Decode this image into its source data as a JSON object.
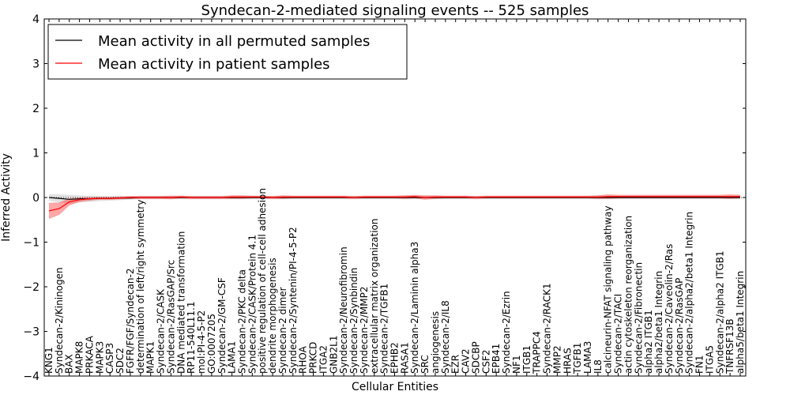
{
  "chart_data": {
    "type": "line",
    "title": "Syndecan-2-mediated signaling events -- 525 samples",
    "xlabel": "Cellular Entities",
    "ylabel": "Inferred Activity",
    "ylim": [
      -4,
      4
    ],
    "yticks": [
      "4",
      "3",
      "2",
      "1",
      "0",
      "−1",
      "−2",
      "−3",
      "−4"
    ],
    "yticks_values": [
      4,
      3,
      2,
      1,
      0,
      -1,
      -2,
      -3,
      -4
    ],
    "legend_position": "top-left",
    "categories": [
      "KNG1",
      "Syndecan-2/Kininogen",
      "BAX",
      "MAPK8",
      "PRKACA",
      "MAPK3",
      "CASP3",
      "SDC2",
      "FGFR/FGF/Syndecan-2",
      "determination of left/right symmetry",
      "MAPK1",
      "Syndecan-2/CASK",
      "Syndecan-2/RasGAP/Src",
      "DNA mediated transformation",
      "RP11-540L11.1",
      "mol:PI-4-5-P2",
      "GO:0007205",
      "Syndecan-2/GM-CSF",
      "LAMA1",
      "Syndecan-2/PKC delta",
      "Syndecan-2/CASK/Protein 4.1",
      "positive regulation of cell-cell adhesion",
      "dendrite morphogenesis",
      "Syndecan-2 dimer",
      "Syndecan-2/Syntenin/PI-4-5-P2",
      "RHOA",
      "PRKCD",
      "ITGA2",
      "GNB2L1",
      "Syndecan-2/Neurofibromin",
      "Syndecan-2/Synbindin",
      "Syndecan-2/MMP2",
      "extracellular matrix organization",
      "Syndecan-2/TGFB1",
      "EPHB2",
      "RASA1",
      "Syndecan-2/Laminin alpha3",
      "SRC",
      "angiogenesis",
      "Syndecan-2/IL8",
      "EZR",
      "CAV2",
      "SDCBP",
      "CSF2",
      "EPB41",
      "Syndecan-2/Ezrin",
      "NF1",
      "ITGB1",
      "TRAPPC4",
      "Syndecan-2/RACK1",
      "MMP2",
      "HRAS",
      "TGFB1",
      "LAMA3",
      "IL8",
      "calcineurin-NFAT signaling pathway",
      "Syndecan-2/TACI",
      "actin cytoskeleton reorganization",
      "Syndecan-2/Fibronectin",
      "alpha2 ITGB1",
      "alpha2/beta1 Integrin",
      "Syndecan-2/Caveolin-2/Ras",
      "Syndecan-2/RasGAP",
      "Syndecan-2/alpha2/beta1 Integrin",
      "FN1",
      "ITGA5",
      "Syndecan-2/alpha2 ITGB1",
      "TNFRSF13B",
      "alpha5/beta1 Integrin"
    ],
    "series": [
      {
        "name": "Mean activity in all permuted samples",
        "color": "#000000",
        "values": [
          0.0,
          -0.02,
          -0.04,
          -0.03,
          -0.03,
          -0.02,
          -0.02,
          -0.01,
          -0.01,
          0.0,
          0.0,
          0.0,
          0.0,
          0.0,
          0.0,
          0.0,
          0.0,
          0.0,
          0.0,
          0.0,
          0.0,
          0.0,
          0.0,
          0.0,
          0.0,
          0.0,
          0.0,
          0.0,
          0.0,
          0.0,
          0.0,
          0.0,
          0.0,
          0.0,
          0.0,
          0.0,
          0.0,
          0.0,
          0.0,
          0.0,
          0.0,
          0.0,
          0.0,
          0.0,
          0.0,
          0.0,
          0.0,
          0.0,
          0.0,
          0.0,
          0.0,
          0.0,
          0.0,
          0.0,
          0.0,
          0.0,
          0.0,
          0.0,
          0.0,
          0.0,
          0.0,
          0.0,
          0.0,
          0.0,
          0.0,
          0.0,
          0.0,
          0.0,
          0.0
        ],
        "band_halfwidth": [
          0.07,
          0.09,
          0.1,
          0.08,
          0.07,
          0.06,
          0.05,
          0.05,
          0.04,
          0.04,
          0.04,
          0.04,
          0.04,
          0.04,
          0.04,
          0.04,
          0.04,
          0.04,
          0.04,
          0.04,
          0.04,
          0.04,
          0.04,
          0.04,
          0.04,
          0.04,
          0.04,
          0.04,
          0.04,
          0.04,
          0.04,
          0.04,
          0.04,
          0.04,
          0.04,
          0.04,
          0.04,
          0.04,
          0.04,
          0.04,
          0.04,
          0.04,
          0.04,
          0.04,
          0.04,
          0.04,
          0.04,
          0.04,
          0.04,
          0.04,
          0.04,
          0.04,
          0.04,
          0.04,
          0.04,
          0.04,
          0.04,
          0.04,
          0.04,
          0.04,
          0.04,
          0.04,
          0.04,
          0.04,
          0.04,
          0.04,
          0.04,
          0.04,
          0.04
        ]
      },
      {
        "name": "Mean activity in patient samples",
        "color": "#ff0000",
        "values": [
          -0.3,
          -0.25,
          -0.1,
          -0.05,
          -0.03,
          -0.02,
          -0.02,
          -0.01,
          0.0,
          0.0,
          0.0,
          0.0,
          0.0,
          0.01,
          0.0,
          0.0,
          0.0,
          0.0,
          0.01,
          0.01,
          0.01,
          0.01,
          0.0,
          0.01,
          0.01,
          0.01,
          0.01,
          0.01,
          0.01,
          0.01,
          0.0,
          0.01,
          0.01,
          0.01,
          0.01,
          0.01,
          0.02,
          0.0,
          0.01,
          0.01,
          0.01,
          0.01,
          0.0,
          0.01,
          0.01,
          0.01,
          0.01,
          0.01,
          0.01,
          0.01,
          0.01,
          0.01,
          0.01,
          0.01,
          0.01,
          0.02,
          0.02,
          0.02,
          0.02,
          0.02,
          0.02,
          0.02,
          0.02,
          0.02,
          0.02,
          0.02,
          0.02,
          0.02,
          0.02
        ],
        "band_halfwidth": [
          0.18,
          0.14,
          0.08,
          0.05,
          0.04,
          0.03,
          0.03,
          0.03,
          0.03,
          0.03,
          0.03,
          0.03,
          0.04,
          0.03,
          0.03,
          0.03,
          0.03,
          0.03,
          0.04,
          0.04,
          0.03,
          0.03,
          0.03,
          0.04,
          0.03,
          0.03,
          0.03,
          0.03,
          0.03,
          0.03,
          0.03,
          0.03,
          0.03,
          0.03,
          0.03,
          0.04,
          0.04,
          0.05,
          0.04,
          0.03,
          0.03,
          0.03,
          0.03,
          0.03,
          0.03,
          0.03,
          0.03,
          0.03,
          0.03,
          0.03,
          0.03,
          0.03,
          0.03,
          0.03,
          0.04,
          0.05,
          0.04,
          0.04,
          0.04,
          0.04,
          0.04,
          0.04,
          0.04,
          0.04,
          0.04,
          0.04,
          0.04,
          0.05,
          0.04
        ]
      }
    ]
  }
}
